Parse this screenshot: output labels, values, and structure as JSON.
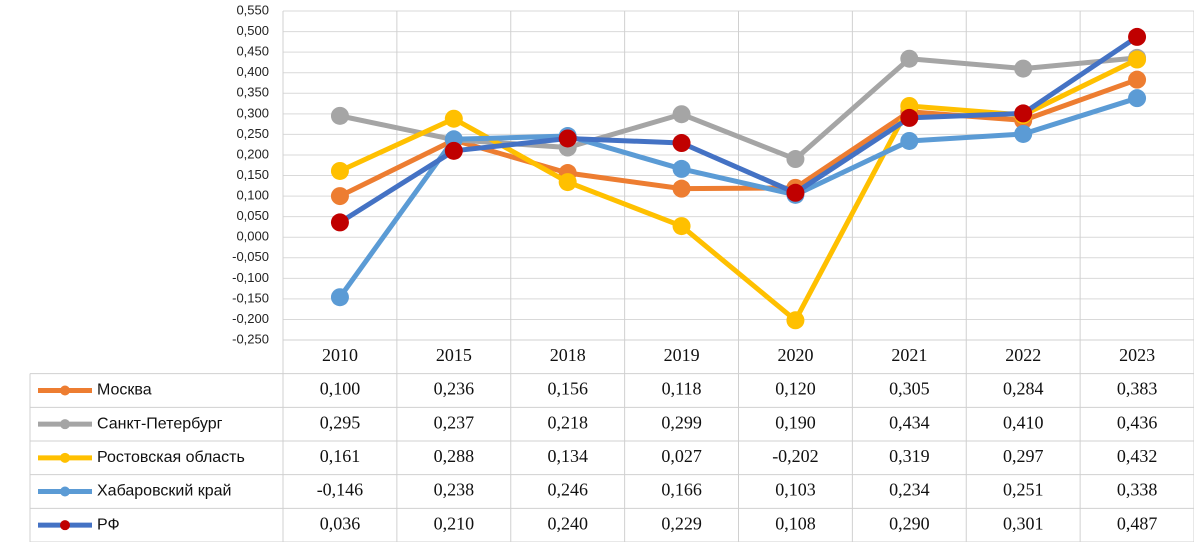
{
  "chart_data": {
    "type": "line",
    "categories": [
      "2010",
      "2015",
      "2018",
      "2019",
      "2020",
      "2021",
      "2022",
      "2023"
    ],
    "ylim": [
      -0.25,
      0.55
    ],
    "yticks": [
      {
        "value": -0.25,
        "label": "-0,250"
      },
      {
        "value": -0.2,
        "label": "-0,200"
      },
      {
        "value": -0.15,
        "label": "-0,150"
      },
      {
        "value": -0.1,
        "label": "-0,100"
      },
      {
        "value": -0.05,
        "label": "-0,050"
      },
      {
        "value": 0,
        "label": "0,000"
      },
      {
        "value": 0.05,
        "label": "0,050"
      },
      {
        "value": 0.1,
        "label": "0,100"
      },
      {
        "value": 0.15,
        "label": "0,150"
      },
      {
        "value": 0.2,
        "label": "0,200"
      },
      {
        "value": 0.25,
        "label": "0,250"
      },
      {
        "value": 0.3,
        "label": "0,300"
      },
      {
        "value": 0.35,
        "label": "0,350"
      },
      {
        "value": 0.4,
        "label": "0,400"
      },
      {
        "value": 0.45,
        "label": "0,450"
      },
      {
        "value": 0.5,
        "label": "0,500"
      },
      {
        "value": 0.55,
        "label": "0,550"
      }
    ],
    "grid": true,
    "series": [
      {
        "name": "Москва",
        "color": "#ED7D31",
        "marker_color": "#ED7D31",
        "values": [
          0.1,
          0.236,
          0.156,
          0.118,
          0.12,
          0.305,
          0.284,
          0.383
        ],
        "value_labels": [
          "0,100",
          "0,236",
          "0,156",
          "0,118",
          "0,120",
          "0,305",
          "0,284",
          "0,383"
        ]
      },
      {
        "name": "Санкт-Петербург",
        "color": "#A5A5A5",
        "marker_color": "#A5A5A5",
        "values": [
          0.295,
          0.237,
          0.218,
          0.299,
          0.19,
          0.434,
          0.41,
          0.436
        ],
        "value_labels": [
          "0,295",
          "0,237",
          "0,218",
          "0,299",
          "0,190",
          "0,434",
          "0,410",
          "0,436"
        ]
      },
      {
        "name": "Ростовская область",
        "color": "#FFC000",
        "marker_color": "#FFC000",
        "values": [
          0.161,
          0.288,
          0.134,
          0.027,
          -0.202,
          0.319,
          0.297,
          0.432
        ],
        "value_labels": [
          "0,161",
          "0,288",
          "0,134",
          "0,027",
          "-0,202",
          "0,319",
          "0,297",
          "0,432"
        ]
      },
      {
        "name": "Хабаровский край",
        "color": "#5B9BD5",
        "marker_color": "#5B9BD5",
        "values": [
          -0.146,
          0.238,
          0.246,
          0.166,
          0.103,
          0.234,
          0.251,
          0.338
        ],
        "value_labels": [
          "-0,146",
          "0,238",
          "0,246",
          "0,166",
          "0,103",
          "0,234",
          "0,251",
          "0,338"
        ]
      },
      {
        "name": "РФ",
        "color": "#4472C4",
        "marker_color": "#C00000",
        "values": [
          0.036,
          0.21,
          0.24,
          0.229,
          0.108,
          0.29,
          0.301,
          0.487
        ],
        "value_labels": [
          "0,036",
          "0,210",
          "0,240",
          "0,229",
          "0,108",
          "0,290",
          "0,301",
          "0,487"
        ]
      }
    ]
  }
}
